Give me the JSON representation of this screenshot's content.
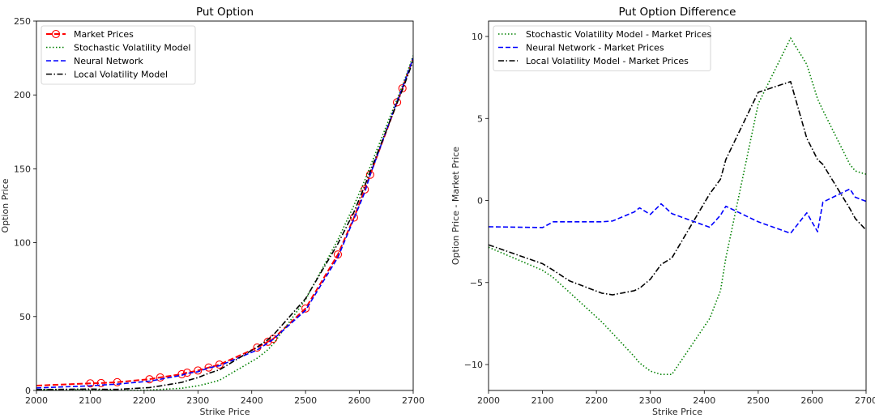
{
  "chart_data": [
    {
      "type": "line",
      "title": "Put Option",
      "xlabel": "Strike Price",
      "ylabel": "Option Price",
      "xlim": [
        2000,
        2700
      ],
      "ylim": [
        0,
        250
      ],
      "xticks": [
        2000,
        2100,
        2200,
        2300,
        2400,
        2500,
        2600,
        2700
      ],
      "yticks": [
        0,
        50,
        100,
        150,
        200,
        250
      ],
      "grid": false,
      "legend_position": "top-left",
      "x": [
        2000,
        2100,
        2120,
        2150,
        2210,
        2230,
        2270,
        2280,
        2300,
        2320,
        2340,
        2410,
        2430,
        2440,
        2500,
        2560,
        2590,
        2610,
        2620,
        2670,
        2680,
        2700
      ],
      "series": [
        {
          "name": "Market Prices",
          "color": "#ff0000",
          "style": "dashed-circle-markers",
          "values": [
            3.3,
            4.8,
            5.0,
            5.6,
            7.6,
            8.8,
            11.0,
            12.0,
            13.5,
            15.5,
            17.5,
            29.0,
            33.0,
            35.0,
            55.5,
            92.0,
            117.0,
            136.0,
            146.0,
            195.0,
            204.5,
            225.0
          ]
        },
        {
          "name": "Stochastic Volatility Model",
          "color": "#008000",
          "style": "dotted",
          "values": [
            0.45,
            0.55,
            0.3,
            0.0,
            0.2,
            0.7,
            1.5,
            2.1,
            3.1,
            4.9,
            6.9,
            21.8,
            27.5,
            31.5,
            61.4,
            101.9,
            125.3,
            142.2,
            151.5,
            197.2,
            206.3,
            226.6
          ]
        },
        {
          "name": "Neural Network",
          "color": "#0000ff",
          "style": "dashed",
          "values": [
            1.7,
            3.15,
            3.7,
            4.3,
            6.3,
            7.55,
            10.3,
            11.55,
            12.65,
            15.3,
            16.7,
            27.37,
            32.1,
            34.65,
            54.2,
            90.0,
            116.25,
            134.1,
            145.9,
            195.7,
            204.7,
            224.95
          ]
        },
        {
          "name": "Local Volatility Model",
          "color": "#000000",
          "style": "dash-dot",
          "values": [
            0.6,
            0.95,
            0.75,
            0.7,
            1.95,
            3.05,
            5.5,
            6.65,
            8.7,
            11.6,
            14.0,
            29.4,
            34.3,
            37.5,
            62.1,
            99.25,
            120.8,
            138.5,
            148.2,
            194.5,
            203.4,
            223.2
          ]
        }
      ]
    },
    {
      "type": "line",
      "title": "Put Option Difference",
      "xlabel": "Strike Price",
      "ylabel": "Option Price - Market Price",
      "xlim": [
        2000,
        2700
      ],
      "ylim": [
        -11.58,
        10.94
      ],
      "xticks": [
        2000,
        2100,
        2200,
        2300,
        2400,
        2500,
        2600,
        2700
      ],
      "yticks": [
        -10,
        -5,
        0,
        5,
        10
      ],
      "grid": false,
      "legend_position": "top-left",
      "x": [
        2000,
        2100,
        2120,
        2150,
        2210,
        2230,
        2270,
        2280,
        2300,
        2320,
        2340,
        2410,
        2430,
        2440,
        2500,
        2560,
        2590,
        2610,
        2620,
        2670,
        2680,
        2700
      ],
      "series": [
        {
          "name": "Stochastic Volatility Model - Market Prices",
          "color": "#008000",
          "style": "dotted",
          "values": [
            -2.85,
            -4.25,
            -4.7,
            -5.6,
            -7.4,
            -8.1,
            -9.5,
            -9.9,
            -10.4,
            -10.6,
            -10.6,
            -7.2,
            -5.5,
            -3.5,
            5.9,
            9.9,
            8.3,
            6.2,
            5.5,
            2.2,
            1.8,
            1.6
          ]
        },
        {
          "name": "Neural Network - Market Prices",
          "color": "#0000ff",
          "style": "dashed",
          "values": [
            -1.6,
            -1.65,
            -1.3,
            -1.3,
            -1.3,
            -1.25,
            -0.7,
            -0.45,
            -0.85,
            -0.2,
            -0.8,
            -1.63,
            -0.9,
            -0.35,
            -1.3,
            -2.0,
            -0.75,
            -1.9,
            -0.1,
            0.7,
            0.2,
            -0.05
          ]
        },
        {
          "name": "Local Volatility Model - Market Prices",
          "color": "#000000",
          "style": "dash-dot",
          "values": [
            -2.7,
            -3.85,
            -4.25,
            -4.9,
            -5.65,
            -5.75,
            -5.5,
            -5.35,
            -4.8,
            -3.9,
            -3.5,
            0.4,
            1.3,
            2.5,
            6.6,
            7.25,
            3.8,
            2.5,
            2.2,
            -0.5,
            -1.1,
            -1.8
          ]
        }
      ]
    }
  ]
}
